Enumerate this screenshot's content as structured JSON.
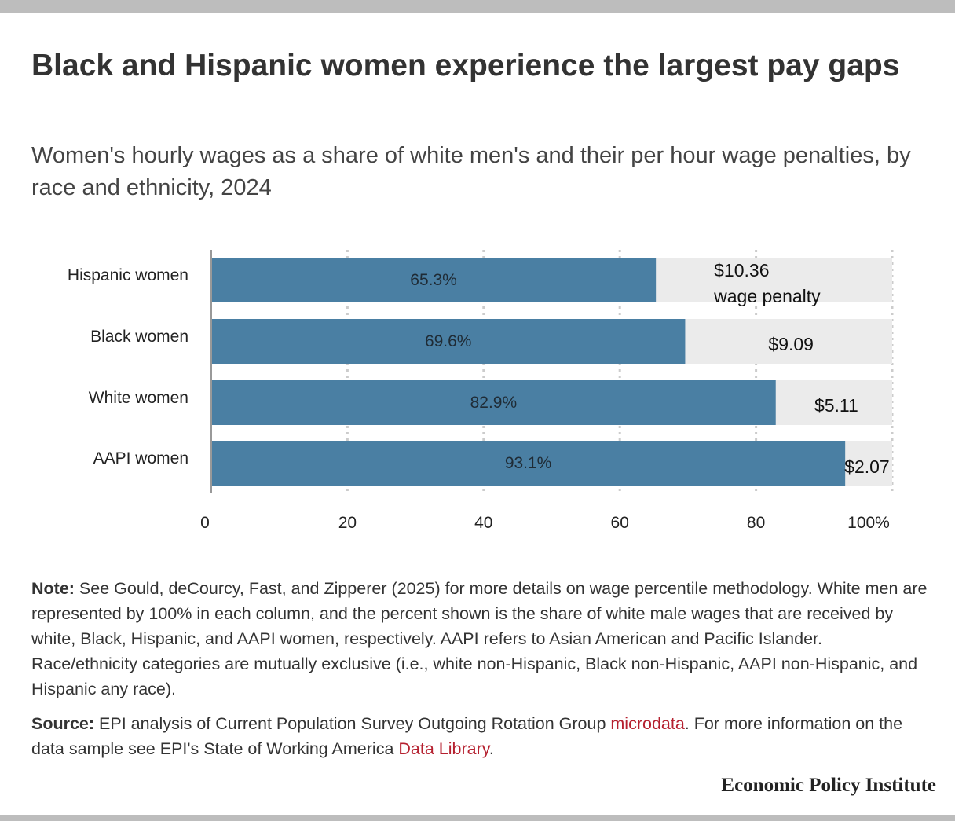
{
  "title": "Black and Hispanic women experience the largest pay gaps",
  "subtitle": "Women's hourly wages as a share of white men's and their per hour wage penalties, by race and ethnicity, 2024",
  "colors": {
    "bar": "#4a7fa3",
    "remainder": "#ebebeb",
    "grid": "#cccccc",
    "axis": "#999999"
  },
  "chart_data": {
    "type": "bar",
    "orientation": "horizontal",
    "stacked": true,
    "categories": [
      "Hispanic women",
      "Black women",
      "White women",
      "AAPI women"
    ],
    "values": [
      65.3,
      69.6,
      82.9,
      93.1
    ],
    "value_labels": [
      "65.3%",
      "69.6%",
      "82.9%",
      "93.1%"
    ],
    "penalty_labels": [
      "$10.36",
      "$9.09",
      "$5.11",
      "$2.07"
    ],
    "penalty_note": "wage penalty",
    "total": 100,
    "xlim": [
      0,
      100
    ],
    "xticks": [
      0,
      20,
      40,
      60,
      80,
      100
    ],
    "xtick_labels": [
      "0",
      "20",
      "40",
      "60",
      "80",
      "100%"
    ],
    "grid": true,
    "legend": "none"
  },
  "note": {
    "label": "Note:",
    "text": "See Gould, deCourcy, Fast, and Zipperer (2025) for more details on wage percentile methodology. White men are represented by 100% in each column, and the percent shown is the share of white male wages that are received by white, Black, Hispanic, and AAPI women, respectively. AAPI refers to Asian American and Pacific Islander. Race/ethnicity categories are mutually exclusive (i.e., white non-Hispanic, Black non-Hispanic, AAPI non-Hispanic, and Hispanic any race)."
  },
  "source": {
    "label": "Source:",
    "text_before": "EPI analysis of Current Population Survey Outgoing Rotation Group",
    "link1": "microdata",
    "text_middle": ". For more information on the data sample see EPI's State of Working America",
    "link2": "Data Library",
    "text_after": "."
  },
  "brand": "Economic Policy Institute"
}
